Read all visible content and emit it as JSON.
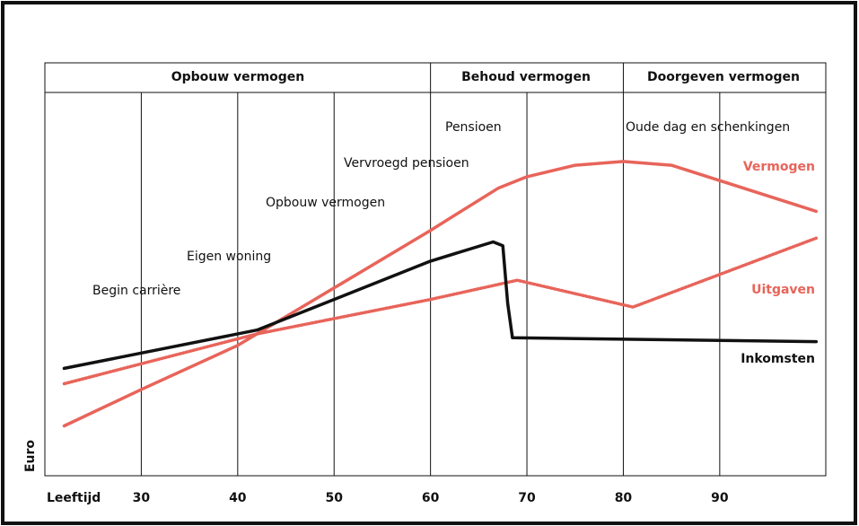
{
  "chart_data": {
    "type": "line",
    "xlabel": "Leeftijd",
    "ylabel": "Euro",
    "xlim": [
      20,
      101
    ],
    "ylim": [
      0,
      100
    ],
    "xticks": [
      30,
      40,
      50,
      60,
      70,
      80,
      90
    ],
    "grid": true,
    "phases": [
      "Opbouw vermogen",
      "Behoud vermogen",
      "Doorgeven vermogen"
    ],
    "annotations": [
      "Begin carrière",
      "Eigen woning",
      "Opbouw vermogen",
      "Vervroegd pensioen",
      "Pensioen",
      "Oude dag en schenkingen"
    ],
    "series": [
      {
        "name": "Vermogen",
        "color": "#e8645a",
        "style": "solid",
        "x": [
          22,
          30,
          40,
          50,
          60,
          67,
          70,
          75,
          80,
          85,
          90,
          95,
          100
        ],
        "values": [
          13,
          22.5,
          34,
          49,
          64,
          75,
          78,
          81,
          82,
          81,
          77,
          73,
          69
        ]
      },
      {
        "name": "Uitgaven",
        "color": "#e8645a",
        "style": "dotted",
        "x": [
          22,
          42,
          60,
          69,
          81,
          100
        ],
        "values": [
          24,
          37,
          46,
          51,
          44,
          62
        ]
      },
      {
        "name": "Inkomsten",
        "color": "#111111",
        "style": "solid",
        "x": [
          22,
          42,
          50,
          60,
          66.5,
          67.5,
          68,
          68.5,
          100
        ],
        "values": [
          28,
          38,
          46,
          56,
          61,
          60,
          45,
          36,
          35
        ]
      }
    ]
  }
}
